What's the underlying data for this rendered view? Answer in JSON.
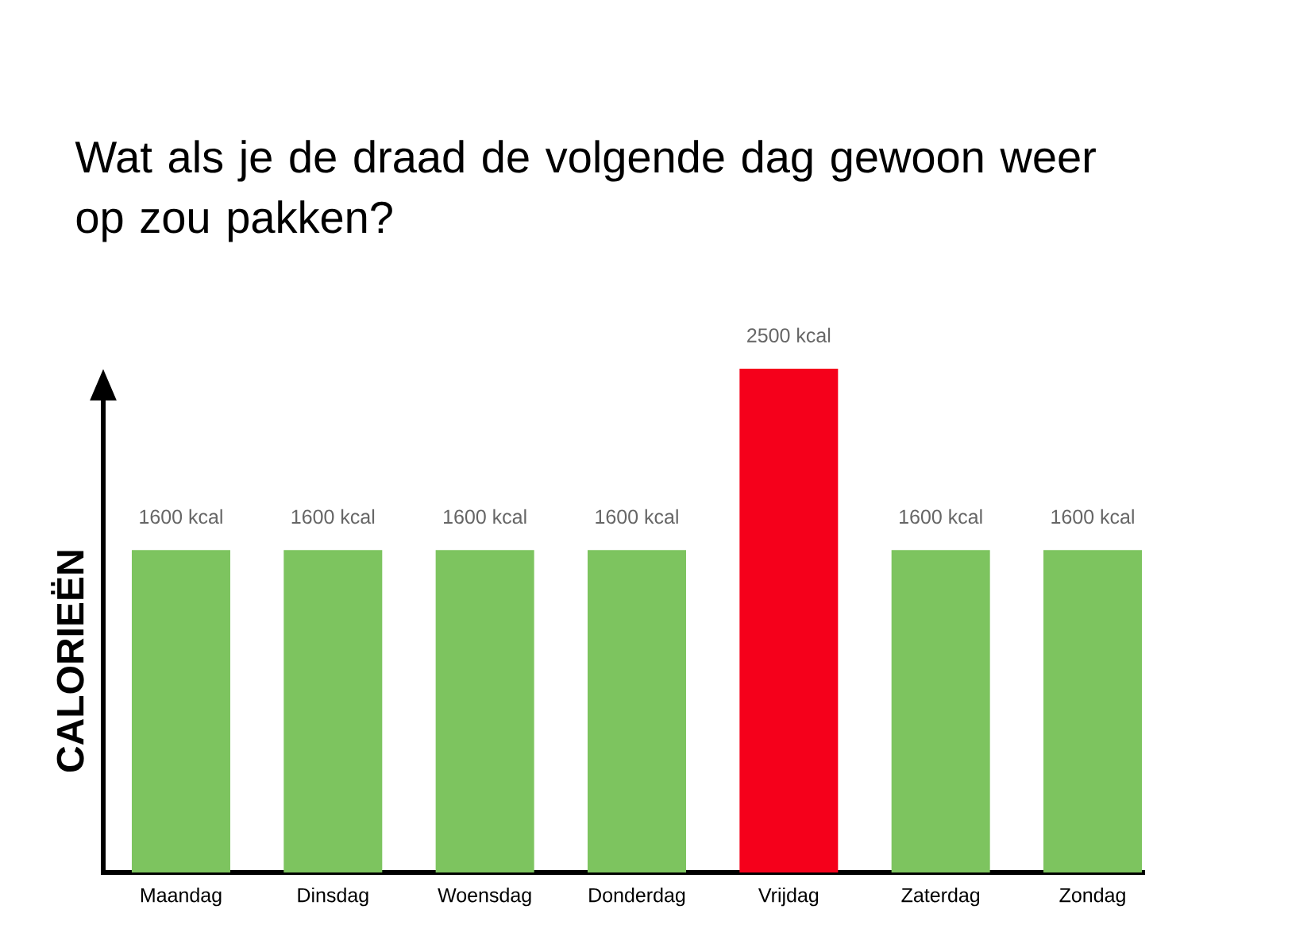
{
  "chart_data": {
    "type": "bar",
    "title": "Wat als je de draad de volgende dag gewoon weer op zou pakken?",
    "ylabel": "CALORIEËN",
    "categories": [
      "Maandag",
      "Dinsdag",
      "Woensdag",
      "Donderdag",
      "Vrijdag",
      "Zaterdag",
      "Zondag"
    ],
    "values": [
      1600,
      1600,
      1600,
      1600,
      2500,
      1600,
      1600
    ],
    "colors": [
      "#7dc45f",
      "#7dc45f",
      "#7dc45f",
      "#7dc45f",
      "#f5001b",
      "#7dc45f",
      "#7dc45f"
    ],
    "value_labels": [
      "1600 kcal",
      "1600 kcal",
      "1600 kcal",
      "1600 kcal",
      "2500 kcal",
      "1600 kcal",
      "1600 kcal"
    ],
    "ylim": [
      0,
      2500
    ],
    "tick_labels": "x"
  }
}
